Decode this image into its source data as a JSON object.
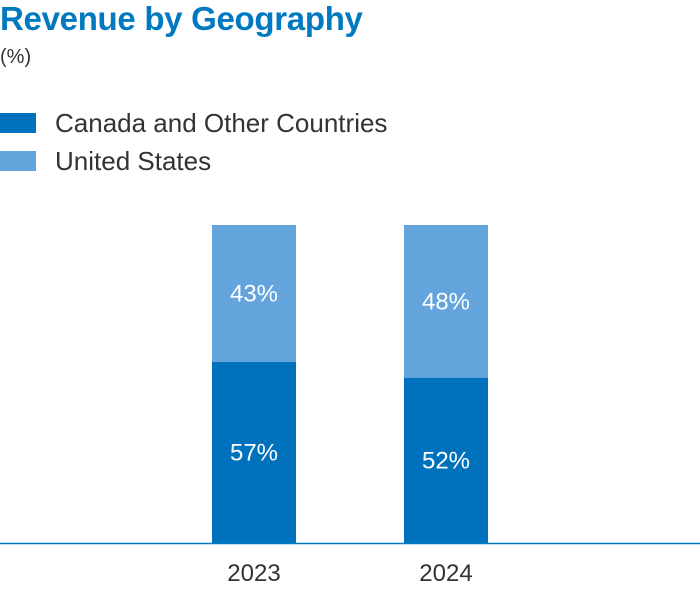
{
  "chart_data": {
    "type": "bar",
    "stacked": true,
    "title": "Revenue by Geography",
    "subtitle": "(%)",
    "categories": [
      "2023",
      "2024"
    ],
    "series": [
      {
        "name": "Canada and Other Countries",
        "values": [
          57,
          52
        ],
        "labels": [
          "57%",
          "52%"
        ],
        "color": "#0071bc"
      },
      {
        "name": "United States",
        "values": [
          43,
          48
        ],
        "labels": [
          "43%",
          "48%"
        ],
        "color": "#64a4dc"
      }
    ],
    "ylim": [
      0,
      100
    ],
    "xlabel": "",
    "ylabel": "",
    "grid": false,
    "legend_position": "top-left"
  }
}
